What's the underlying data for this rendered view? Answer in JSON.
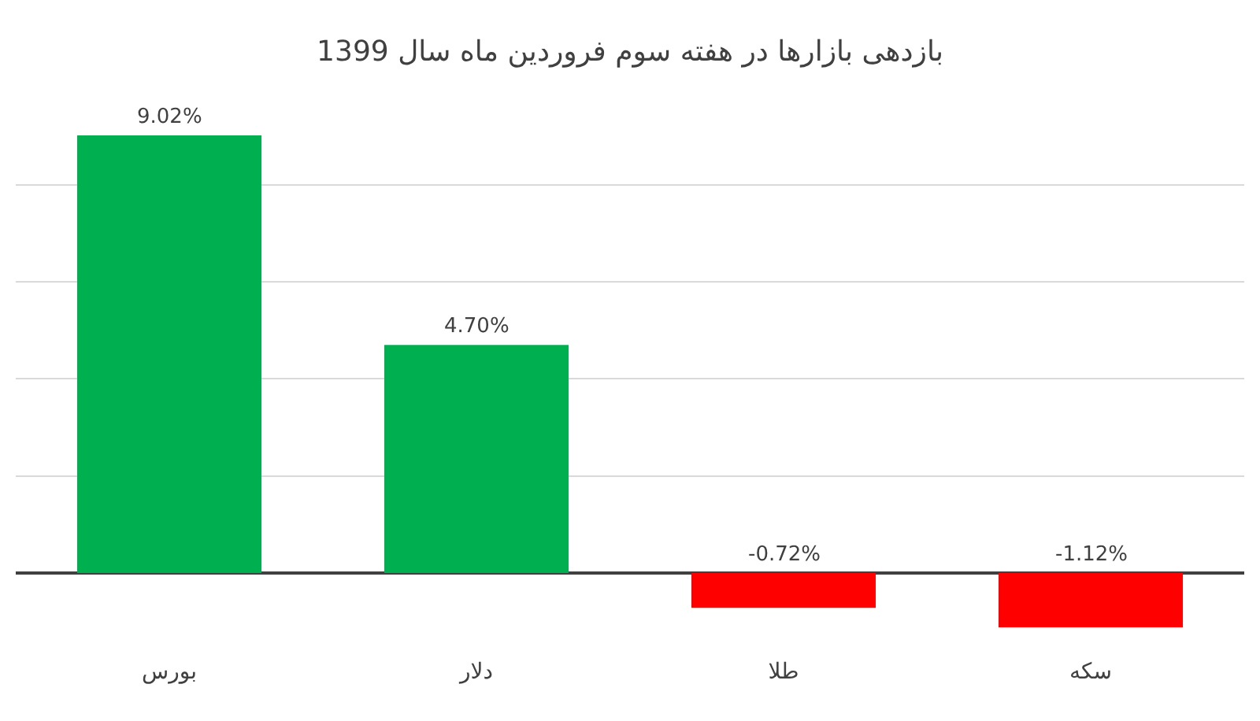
{
  "chart_data": {
    "type": "bar",
    "title": "بازدهی بازارها در هفته سوم فروردین ماه سال 1399",
    "categories": [
      "بورس",
      "دلار",
      "طلا",
      "سکه"
    ],
    "values": [
      9.02,
      4.7,
      -0.72,
      -1.12
    ],
    "colors": [
      "#00b050",
      "#00b050",
      "#ff0000",
      "#ff0000"
    ],
    "value_labels": [
      "9.02%",
      "4.70%",
      "-0.72%",
      "-1.12%"
    ],
    "grid": "y",
    "tick_labels": "x"
  }
}
